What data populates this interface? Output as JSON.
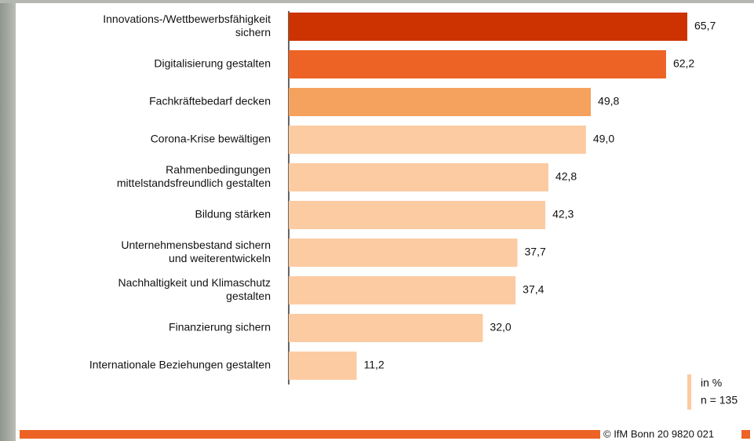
{
  "chart_data": {
    "type": "barh",
    "categories": [
      [
        "Innovations-/Wettbewerbsfähigkeit",
        "sichern"
      ],
      [
        "Digitalisierung gestalten"
      ],
      [
        "Fachkräftebedarf decken"
      ],
      [
        "Corona-Krise bewältigen"
      ],
      [
        "Rahmenbedingungen",
        "mittelstandsfreundlich gestalten"
      ],
      [
        "Bildung stärken"
      ],
      [
        "Unternehmensbestand sichern",
        "und weiterentwickeln"
      ],
      [
        "Nachhaltigkeit und Klimaschutz",
        "gestalten"
      ],
      [
        "Finanzierung sichern"
      ],
      [
        "Internationale Beziehungen gestalten"
      ]
    ],
    "values": [
      65.7,
      62.2,
      49.8,
      49.0,
      42.8,
      42.3,
      37.7,
      37.4,
      32.0,
      11.2
    ],
    "value_labels": [
      "65,7",
      "62,2",
      "49,8",
      "49,0",
      "42,8",
      "42,3",
      "37,7",
      "37,4",
      "32,0",
      "11,2"
    ],
    "colors": [
      "#cc3300",
      "#ec6325",
      "#f4a25e",
      "#fccba2",
      "#fccba2",
      "#fccba2",
      "#fccba2",
      "#fccba2",
      "#fccba2",
      "#fccba2"
    ],
    "notes": [
      "in %",
      "n = 135"
    ],
    "source": "© IfM Bonn 20 9820 021"
  }
}
